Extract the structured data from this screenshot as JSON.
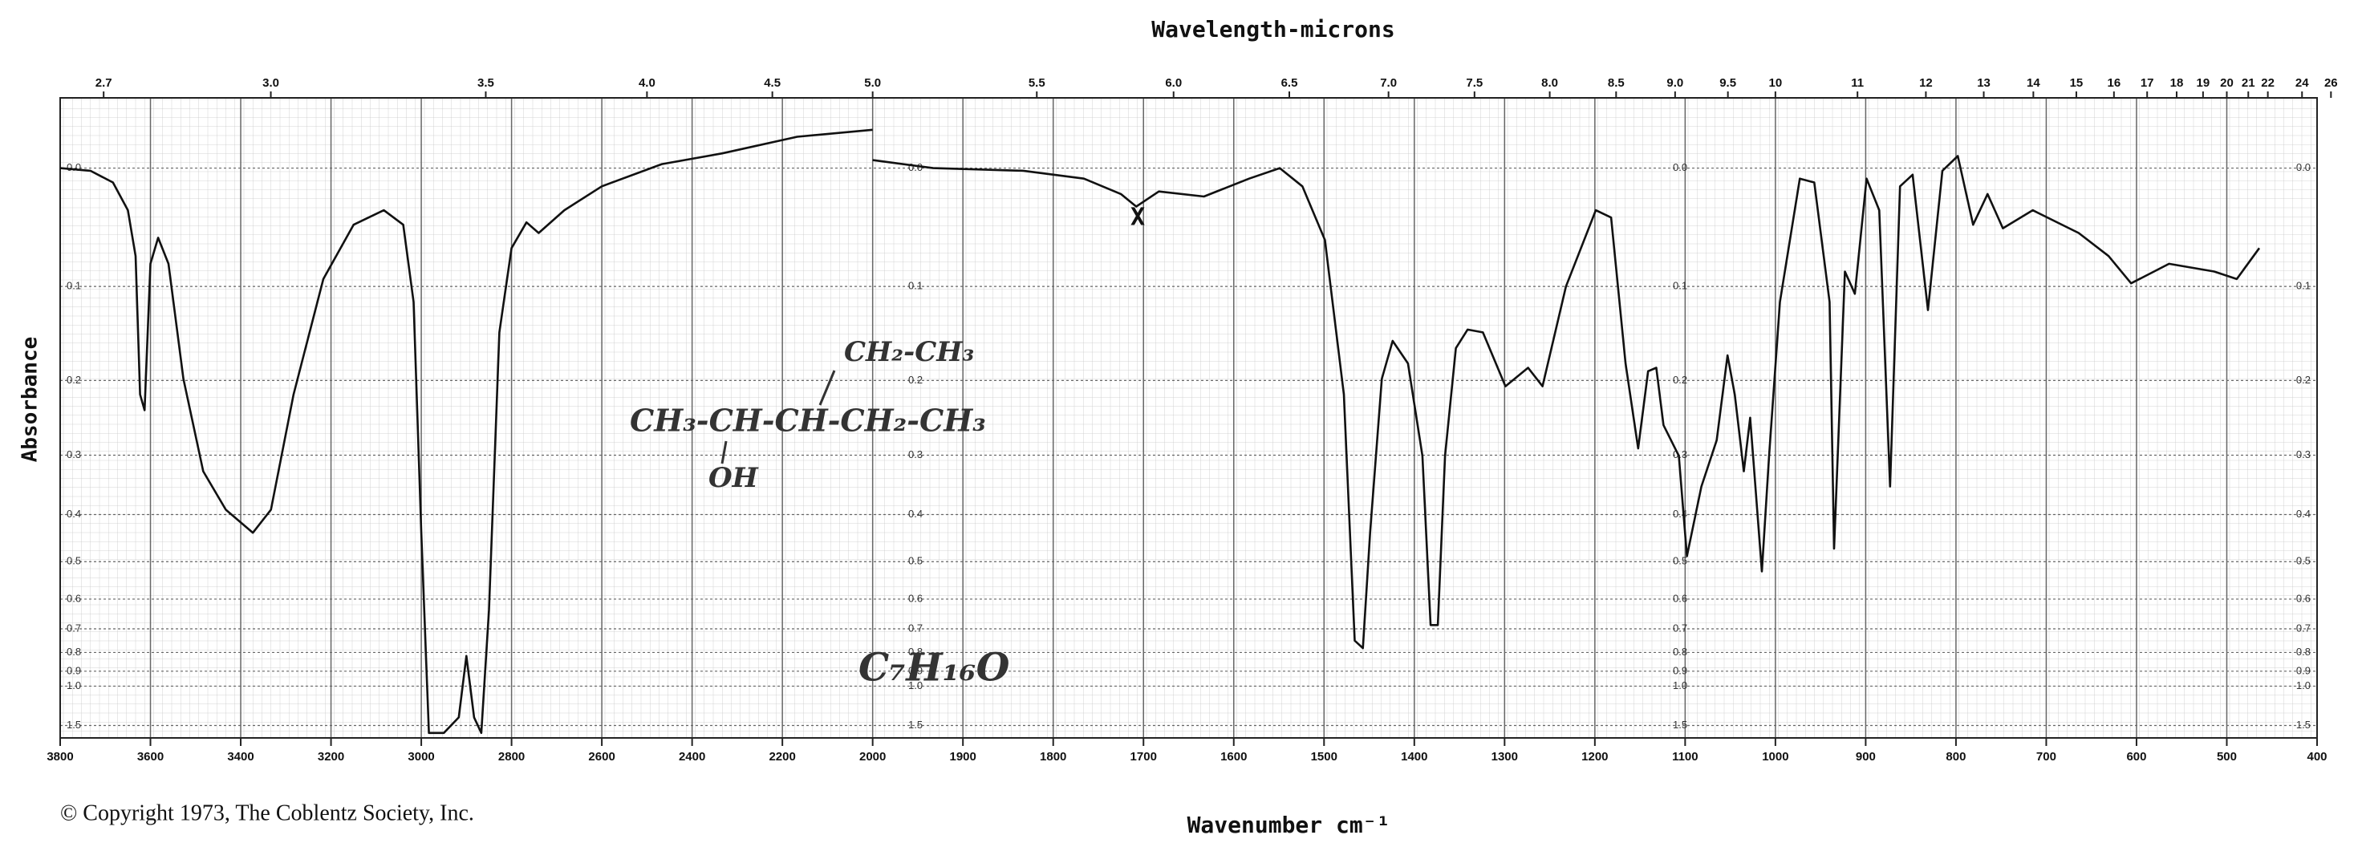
{
  "chart_data": {
    "type": "line",
    "title": "Wavelength-microns",
    "x_label": "Wavenumber cm⁻¹",
    "y_label": "Absorbance",
    "copyright": "© Copyright 1973, The Coblentz Society, Inc.",
    "annotations": {
      "branch": "CH₂-CH₃",
      "chain": "CH₃-CH-CH-CH₂-CH₃",
      "hydroxyl": "OH",
      "formula": "C₇H₁₆O",
      "marker": "X"
    },
    "color": "#111111",
    "grid": true,
    "y_scale": "absorbance",
    "x_scale_break": 2000,
    "x_scale_ratio": 2,
    "xlim": [
      3800,
      400
    ],
    "ylim": [
      -0.05,
      2
    ],
    "xticks": [
      3800,
      3600,
      3400,
      3200,
      3000,
      2800,
      2600,
      2400,
      2200,
      2000,
      1900,
      1800,
      1700,
      1600,
      1500,
      1400,
      1300,
      1200,
      1100,
      1000,
      900,
      800,
      700,
      600,
      500,
      400
    ],
    "yticks": [
      {
        "value": 0,
        "label": "0.0"
      },
      0.1,
      0.2,
      0.3,
      0.4,
      0.5,
      0.6,
      0.7,
      0.8,
      0.9,
      {
        "value": 1,
        "label": "1.0"
      },
      1.5
    ],
    "wavelength_ticks": [
      2.7,
      {
        "value": 3,
        "label": "3.0"
      },
      3.5,
      {
        "value": 4,
        "label": "4.0"
      },
      4.5,
      {
        "value": 5,
        "label": "5.0"
      },
      5.5,
      {
        "value": 6,
        "label": "6.0"
      },
      6.5,
      {
        "value": 7,
        "label": "7.0"
      },
      7.5,
      {
        "value": 8,
        "label": "8.0"
      },
      8.5,
      {
        "value": 9,
        "label": "9.0"
      },
      9.5,
      10,
      11,
      12,
      13,
      14,
      15,
      16,
      17,
      18,
      19,
      20,
      21,
      22,
      24,
      26
    ],
    "x": [
      3800,
      3733,
      3683,
      3650,
      3633,
      3623,
      3613,
      3600,
      3583,
      3560,
      3527,
      3483,
      3433,
      3373,
      3333,
      3283,
      3217,
      3150,
      3083,
      3040,
      3017,
      3000,
      2983,
      2950,
      2917,
      2900,
      2883,
      2867,
      2850,
      2827,
      2800,
      2767,
      2740,
      2683,
      2600,
      2467,
      2333,
      2167,
      2000,
      2000,
      2000,
      1933,
      1833,
      1766,
      1725,
      1708,
      1683,
      1633,
      1583,
      1549,
      1524,
      1499,
      1478,
      1466,
      1457,
      1449,
      1436,
      1424,
      1407,
      1391,
      1382,
      1374,
      1366,
      1354,
      1341,
      1324,
      1299,
      1274,
      1258,
      1232,
      1199,
      1182,
      1166,
      1152,
      1141,
      1132,
      1124,
      1107,
      1098,
      1082,
      1065,
      1053,
      1045,
      1035,
      1028,
      1015,
      1007,
      995,
      973,
      957,
      940,
      935,
      923,
      912,
      899,
      885,
      873,
      862,
      848,
      831,
      815,
      798,
      781,
      765,
      748,
      715,
      664,
      631,
      606,
      564,
      514,
      489,
      464
    ],
    "values": [
      0,
      0.002,
      0.011,
      0.033,
      0.072,
      0.217,
      0.237,
      0.079,
      0.056,
      0.079,
      0.198,
      0.325,
      0.391,
      0.436,
      0.391,
      0.217,
      0.093,
      0.045,
      0.033,
      0.045,
      0.115,
      0.436,
      1.73,
      1.73,
      1.34,
      0.817,
      1.34,
      1.73,
      0.633,
      0.146,
      0.065,
      0.043,
      0.052,
      0.033,
      0.014,
      -0.003,
      -0.011,
      -0.023,
      -0.028,
      null,
      -0.006,
      0,
      0.002,
      0.008,
      0.02,
      0.03,
      0.018,
      0.022,
      0.008,
      0,
      0.014,
      0.058,
      0.217,
      0.747,
      0.78,
      0.436,
      0.198,
      0.155,
      0.18,
      0.301,
      0.686,
      0.686,
      0.301,
      0.163,
      0.143,
      0.146,
      0.207,
      0.185,
      0.207,
      0.1,
      0.033,
      0.039,
      0.18,
      0.29,
      0.189,
      0.185,
      0.257,
      0.301,
      0.487,
      0.35,
      0.278,
      0.171,
      0.217,
      0.325,
      0.247,
      0.524,
      0.301,
      0.115,
      0.008,
      0.011,
      0.115,
      0.47,
      0.086,
      0.107,
      0.008,
      0.033,
      0.35,
      0.014,
      0.005,
      0.123,
      0.002,
      -0.009,
      0.045,
      0.02,
      0.048,
      0.033,
      0.052,
      0.072,
      0.097,
      0.079,
      0.086,
      0.093,
      0.065
    ]
  }
}
